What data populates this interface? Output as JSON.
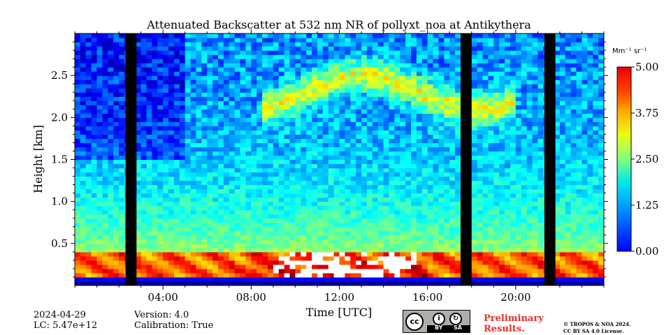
{
  "chart_data": {
    "type": "heatmap",
    "title": "Attenuated Backscatter at 532 nm NR of pollyxt_noa at Antikythera",
    "xlabel": "Time [UTC]",
    "ylabel": "Height [km]",
    "x_ticks": [
      "04:00",
      "08:00",
      "12:00",
      "16:00",
      "20:00"
    ],
    "x_tick_hours": [
      4,
      8,
      12,
      16,
      20
    ],
    "xlim_hours": [
      0,
      24
    ],
    "y_ticks": [
      "0.5",
      "1.0",
      "1.5",
      "2.0",
      "2.5"
    ],
    "y_tick_values": [
      0.5,
      1.0,
      1.5,
      2.0,
      2.5
    ],
    "ylim_km": [
      0,
      3.0
    ],
    "colorbar": {
      "label": "Mm⁻¹ sr⁻¹",
      "ticks": [
        "0.00",
        "1.25",
        "2.50",
        "3.75",
        "5.00"
      ],
      "tick_values": [
        0.0,
        1.25,
        2.5,
        3.75,
        5.0
      ],
      "range": [
        0.0,
        5.0
      ],
      "colormap": "jet"
    },
    "missing_data_hours": [
      [
        2.3,
        2.8
      ],
      [
        17.5,
        18.0
      ],
      [
        21.3,
        21.8
      ]
    ],
    "features": {
      "boundary_layer_top_km": 0.4,
      "elevated_layer_km": [
        2.0,
        2.7
      ],
      "elevated_layer_hours": [
        8.5,
        20.0
      ]
    }
  },
  "meta": {
    "date": "2024-04-29",
    "lc": "LC: 5.47e+12",
    "version": "Version: 4.0",
    "calibration": "Calibration: True"
  },
  "license": {
    "cc": "cc",
    "by": "BY",
    "sa": "SA",
    "preliminary_line1": "Preliminary",
    "preliminary_line2": "Results.",
    "copyright_line1": "© TROPOS & NOA 2024.",
    "copyright_line2": "CC BY SA 4.0 License."
  },
  "colors": {
    "jet": [
      "#00007f",
      "#0000ff",
      "#007fff",
      "#00ffff",
      "#7fff7f",
      "#ffff00",
      "#ff7f00",
      "#ff0000",
      "#7f0000"
    ],
    "gap": "#000000"
  }
}
